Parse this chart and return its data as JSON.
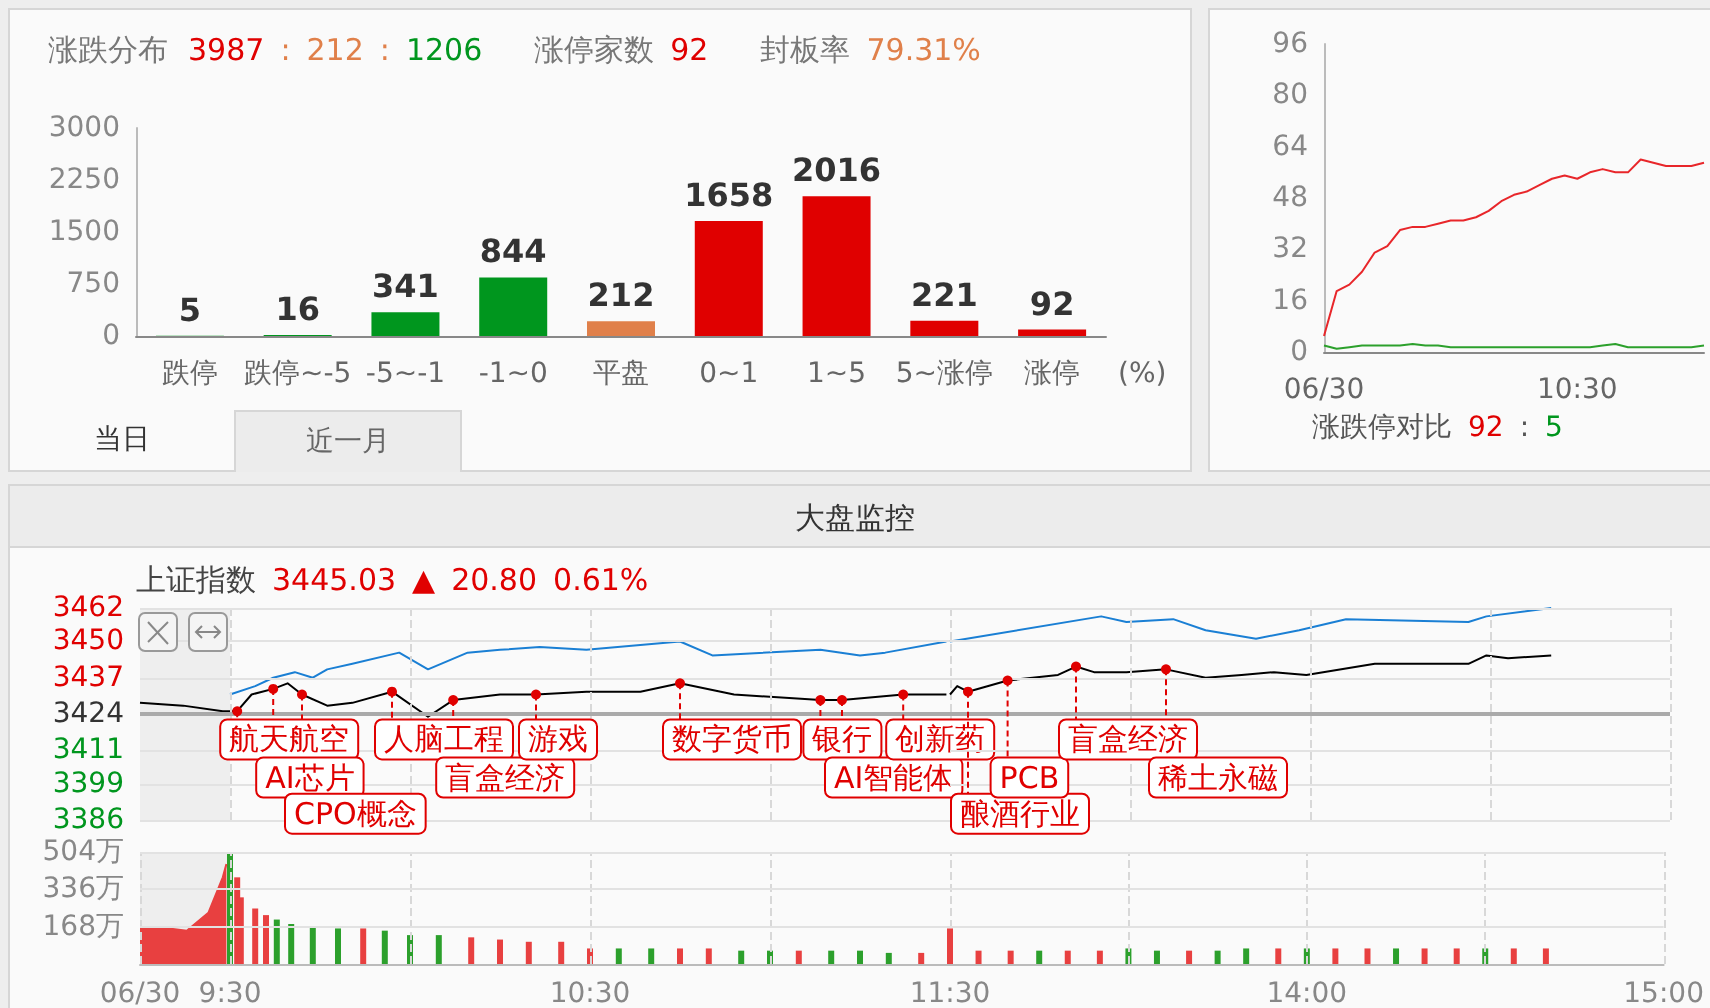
{
  "chart_data": [
    {
      "type": "bar",
      "title": "涨跌分布",
      "annotations": [
        "3987 : 212 : 1206",
        "涨停家数 92",
        "封板率 79.31%",
        "当日",
        "近一月"
      ],
      "xlabel": "(%)",
      "categories": [
        "跌停",
        "跌停~-5",
        "-5~-1",
        "-1~0",
        "平盘",
        "0~1",
        "1~5",
        "5~涨停",
        "涨停"
      ],
      "values": [
        5,
        16,
        341,
        844,
        212,
        1658,
        2016,
        221,
        92
      ],
      "colors": [
        "#00961e",
        "#00961e",
        "#00961e",
        "#00961e",
        "#e0804a",
        "#e00000",
        "#e00000",
        "#e00000",
        "#e00000"
      ],
      "ylim": [
        0,
        3000
      ],
      "yticks": [
        0,
        750,
        1500,
        2250,
        3000
      ],
      "data_labels": true
    },
    {
      "type": "line",
      "annotations": [
        "涨跌停对比 92 : 5"
      ],
      "categories": [
        "06/30",
        null,
        null,
        null,
        null,
        null,
        null,
        null,
        null,
        null,
        null,
        null,
        null,
        null,
        null,
        null,
        null,
        null,
        null,
        null,
        "10:30",
        null,
        null,
        null,
        null,
        null,
        null,
        null,
        null,
        null,
        null
      ],
      "series": [
        {
          "color": "#e8262a",
          "values": [
            5,
            19,
            21,
            25,
            31,
            33,
            38,
            39,
            39,
            40,
            41,
            41,
            42,
            44,
            47,
            49,
            50,
            52,
            54,
            55,
            54,
            56,
            57,
            56,
            56,
            60,
            59,
            58,
            58,
            58,
            59
          ]
        },
        {
          "color": "#2ca02c",
          "values": [
            2,
            1,
            1.5,
            2,
            2,
            2,
            2,
            2.5,
            2,
            2,
            1.5,
            1.5,
            1.5,
            1.5,
            1.5,
            1.5,
            1.5,
            1.5,
            1.5,
            1.5,
            1.5,
            1.5,
            2,
            2.5,
            1.5,
            1.5,
            1.5,
            1.5,
            1.5,
            1.5,
            2
          ]
        }
      ],
      "ylim": [
        0,
        96
      ],
      "yticks": [
        0,
        16,
        32,
        48,
        64,
        80,
        96
      ],
      "marker": "none"
    },
    {
      "type": "line",
      "title": "大盘监控",
      "subtitle": "上证指数 3445.03 ▲ 20.80 0.61%",
      "series": [
        {
          "color": "#1a7fd4",
          "x": [
            9.5,
            9.57,
            9.62,
            9.68,
            9.73,
            9.77,
            9.84,
            9.97,
            10.05,
            10.16,
            10.25,
            10.36,
            10.49,
            10.75,
            10.84,
            11.14,
            11.25,
            11.32,
            11.49
          ],
          "values": [
            3431,
            3434,
            3437,
            3439,
            3437,
            3440,
            3442,
            3446,
            3440,
            3446,
            3447,
            3448,
            3447,
            3450,
            3445,
            3447,
            3445,
            3446,
            3450
          ]
        },
        {
          "color": "#000000",
          "x": [
            9.25,
            9.37,
            9.48,
            9.52,
            9.56,
            9.62,
            9.66,
            9.7,
            9.77,
            9.84,
            9.95,
            10.05,
            10.12,
            10.25,
            10.35,
            10.49,
            10.64,
            10.75,
            10.9,
            11.14,
            11.2,
            11.37,
            11.49
          ],
          "values": [
            3428,
            3427,
            3425,
            3425,
            3431,
            3433,
            3435,
            3431,
            3427,
            3428,
            3432,
            3423,
            3429,
            3431,
            3431,
            3432,
            3432,
            3435,
            3431,
            3429,
            3429,
            3431,
            3431
          ]
        }
      ],
      "xlim": [
        9.25,
        11.5
      ],
      "xticks": [
        9.5,
        10,
        10.5,
        11,
        11.5
      ],
      "ylim": [
        3386,
        3462
      ],
      "yticks": [
        3386,
        3399,
        3411,
        3424,
        3437,
        3450,
        3462
      ],
      "tick_labels": "y",
      "grid": true,
      "marker": "none",
      "ref_lines": [
        {
          "axis": "y",
          "value": 3424,
          "color": "#aaaaaa"
        }
      ],
      "bands": [
        {
          "axis": "x",
          "from": 9.25,
          "to": 9.5,
          "color": "#eeeeee"
        }
      ],
      "annotations": [
        {
          "text": "航天航空",
          "x": 9.52,
          "y": 3425
        },
        {
          "text": "AI芯片",
          "x": 9.62,
          "y": 3433
        },
        {
          "text": "CPO概念",
          "x": 9.7,
          "y": 3431
        },
        {
          "text": "人脑工程",
          "x": 9.95,
          "y": 3432
        },
        {
          "text": "盲盒经济",
          "x": 10.12,
          "y": 3429
        },
        {
          "text": "游戏",
          "x": 10.35,
          "y": 3431
        },
        {
          "text": "数字货币",
          "x": 10.75,
          "y": 3435
        },
        {
          "text": "银行",
          "x": 11.14,
          "y": 3429
        },
        {
          "text": "AI智能体",
          "x": 11.2,
          "y": 3429
        },
        {
          "text": "创新药",
          "x": 11.37,
          "y": 3431
        }
      ]
    },
    {
      "type": "line",
      "series": [
        {
          "color": "#1a7fd4",
          "x": [
            13,
            13.42,
            13.49,
            13.62,
            13.71,
            13.85,
            13.97,
            14.1,
            14.44,
            14.49,
            14.67
          ],
          "values": [
            3450,
            3459,
            3457,
            3458,
            3454,
            3451,
            3454,
            3458,
            3457,
            3459,
            3462
          ]
        },
        {
          "color": "#000000",
          "x": [
            13,
            13.02,
            13.05,
            13.16,
            13.3,
            13.35,
            13.4,
            13.49,
            13.6,
            13.71,
            13.81,
            13.9,
            13.99,
            14.18,
            14.44,
            14.49,
            14.55,
            14.67
          ],
          "values": [
            3431,
            3434,
            3432,
            3436,
            3438,
            3441,
            3439,
            3439,
            3440,
            3437,
            3438,
            3439,
            3438,
            3442,
            3442,
            3445,
            3444,
            3445
          ]
        }
      ],
      "xlim": [
        13,
        15
      ],
      "xticks": [
        13.5,
        14,
        14.5,
        15
      ],
      "ylim": [
        3386,
        3462
      ],
      "yticks": [
        3386,
        3399,
        3411,
        3424,
        3437,
        3450,
        3462
      ],
      "tick_labels": false,
      "grid": true,
      "marker": "none",
      "ref_lines": [
        {
          "axis": "y",
          "value": 3424,
          "color": "#aaaaaa"
        }
      ],
      "annotations": [
        {
          "text": "酿酒行业",
          "x": 13.05,
          "y": 3432
        },
        {
          "text": "PCB",
          "x": 13.16,
          "y": 3436
        },
        {
          "text": "盲盒经济",
          "x": 13.35,
          "y": 3441
        },
        {
          "text": "稀土永磁",
          "x": 13.6,
          "y": 3440
        }
      ]
    },
    {
      "type": "bar",
      "series": [
        {
          "type": "area",
          "color": "#e84040",
          "x": [
            9.25,
            9.33,
            9.38,
            9.44,
            9.48,
            9.49
          ],
          "values": [
            160,
            160,
            150,
            230,
            390,
            450
          ]
        },
        {
          "x": [
            9.5,
            9.52,
            9.53,
            9.57,
            9.6,
            9.63,
            9.67,
            9.73,
            9.8,
            9.87,
            9.93,
            10,
            10.08,
            10.17,
            10.25,
            10.33,
            10.42,
            10.5,
            10.58,
            10.67,
            10.75,
            10.83,
            10.92,
            11,
            11.08,
            11.17,
            11.25,
            11.33,
            11.42
          ],
          "values": [
            500,
            390,
            300,
            250,
            220,
            200,
            180,
            170,
            160,
            160,
            150,
            130,
            130,
            120,
            110,
            100,
            100,
            70,
            70,
            70,
            70,
            70,
            60,
            60,
            60,
            60,
            60,
            50,
            50
          ],
          "colors": [
            "#2ca02c",
            "#e84040",
            "#e84040",
            "#e84040",
            "#e84040",
            "#2ca02c",
            "#2ca02c",
            "#2ca02c",
            "#2ca02c",
            "#e84040",
            "#2ca02c",
            "#2ca02c",
            "#2ca02c",
            "#e84040",
            "#e84040",
            "#e84040",
            "#e84040",
            "#e84040",
            "#2ca02c",
            "#2ca02c",
            "#e84040",
            "#e84040",
            "#2ca02c",
            "#2ca02c",
            "#e84040",
            "#2ca02c",
            "#2ca02c",
            "#2ca02c",
            "#e84040"
          ]
        }
      ],
      "xlim": [
        9.25,
        11.5
      ],
      "xticks": [
        {
          "value": 9.25,
          "label": "06/30"
        },
        {
          "value": 9.5,
          "label": "9:30"
        },
        {
          "value": 10,
          "label": null
        },
        {
          "value": 10.5,
          "label": "10:30"
        },
        {
          "value": 11,
          "label": null
        },
        {
          "value": 11.5,
          "label": "11:30"
        }
      ],
      "ylim": [
        0,
        504
      ],
      "yticks": [
        {
          "value": 168,
          "label": "168万"
        },
        {
          "value": 336,
          "label": "336万"
        },
        {
          "value": 504,
          "label": "504万"
        }
      ],
      "grid": true,
      "bands": [
        {
          "axis": "x",
          "from": 9.25,
          "to": 9.5,
          "color": "#eeeeee"
        }
      ]
    },
    {
      "type": "bar",
      "series": [
        {
          "x": [
            13,
            13.08,
            13.17,
            13.25,
            13.33,
            13.42,
            13.5,
            13.58,
            13.67,
            13.75,
            13.83,
            13.92,
            14,
            14.08,
            14.17,
            14.25,
            14.33,
            14.42,
            14.5,
            14.58,
            14.67
          ],
          "values": [
            160,
            60,
            60,
            60,
            60,
            60,
            70,
            60,
            60,
            60,
            70,
            70,
            70,
            70,
            70,
            70,
            70,
            70,
            70,
            70,
            70
          ],
          "colors": [
            "#e84040",
            "#e84040",
            "#e84040",
            "#2ca02c",
            "#e84040",
            "#e84040",
            "#2ca02c",
            "#2ca02c",
            "#e84040",
            "#2ca02c",
            "#2ca02c",
            "#e84040",
            "#2ca02c",
            "#e84040",
            "#e84040",
            "#2ca02c",
            "#e84040",
            "#e84040",
            "#2ca02c",
            "#e84040",
            "#e84040"
          ]
        }
      ],
      "xlim": [
        13,
        15
      ],
      "xticks": [
        {
          "value": 13.5,
          "label": null
        },
        {
          "value": 14,
          "label": "14:00"
        },
        {
          "value": 14.5,
          "label": null
        },
        {
          "value": 15,
          "label": "15:00"
        }
      ],
      "ylim": [
        0,
        504
      ],
      "yticks": [
        168,
        336,
        504
      ],
      "tick_labels": "x",
      "grid": true
    }
  ]
}
